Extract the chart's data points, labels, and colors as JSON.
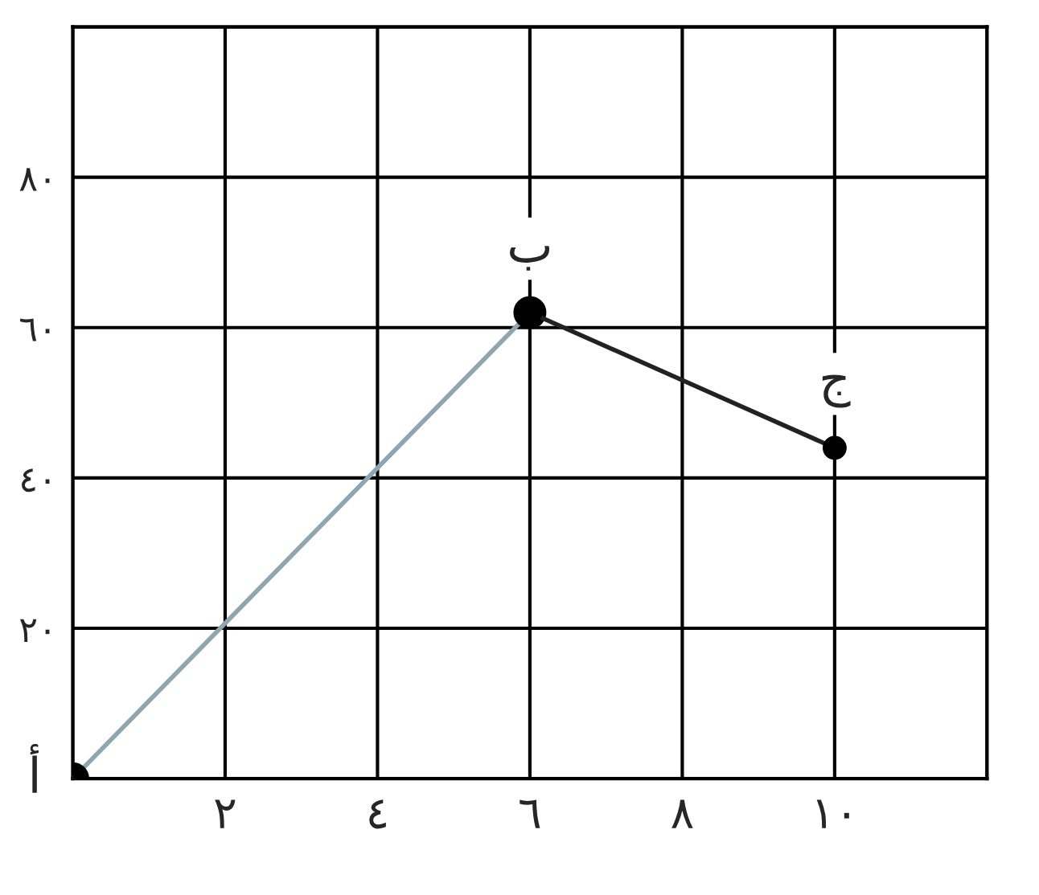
{
  "chart_data": {
    "type": "line",
    "series": [
      {
        "x": [
          0,
          6
        ],
        "values": [
          0,
          62
        ],
        "color": "#8fa6b0"
      },
      {
        "x": [
          6,
          10
        ],
        "values": [
          62,
          44
        ],
        "color": "#222222"
      }
    ],
    "marker": "circle",
    "xlim": [
      0,
      12
    ],
    "ylim": [
      0,
      100
    ],
    "xticks": [
      {
        "value": 0,
        "label": null
      },
      {
        "value": 2,
        "label": "٢"
      },
      {
        "value": 4,
        "label": "٤"
      },
      {
        "value": 6,
        "label": "٦"
      },
      {
        "value": 8,
        "label": "٨"
      },
      {
        "value": 10,
        "label": "١٠"
      },
      {
        "value": 12,
        "label": null
      }
    ],
    "yticks": [
      {
        "value": 0,
        "label": null
      },
      {
        "value": 20,
        "label": "٢٠"
      },
      {
        "value": 40,
        "label": "٤٠"
      },
      {
        "value": 60,
        "label": "٦٠"
      },
      {
        "value": 80,
        "label": "٨٠"
      },
      {
        "value": 100,
        "label": null
      }
    ],
    "grid": true,
    "annotations": [
      {
        "text": "أ",
        "x": 0,
        "y": 0
      },
      {
        "text": "ب",
        "x": 6,
        "y": 62
      },
      {
        "text": "ج",
        "x": 10,
        "y": 44
      }
    ]
  }
}
